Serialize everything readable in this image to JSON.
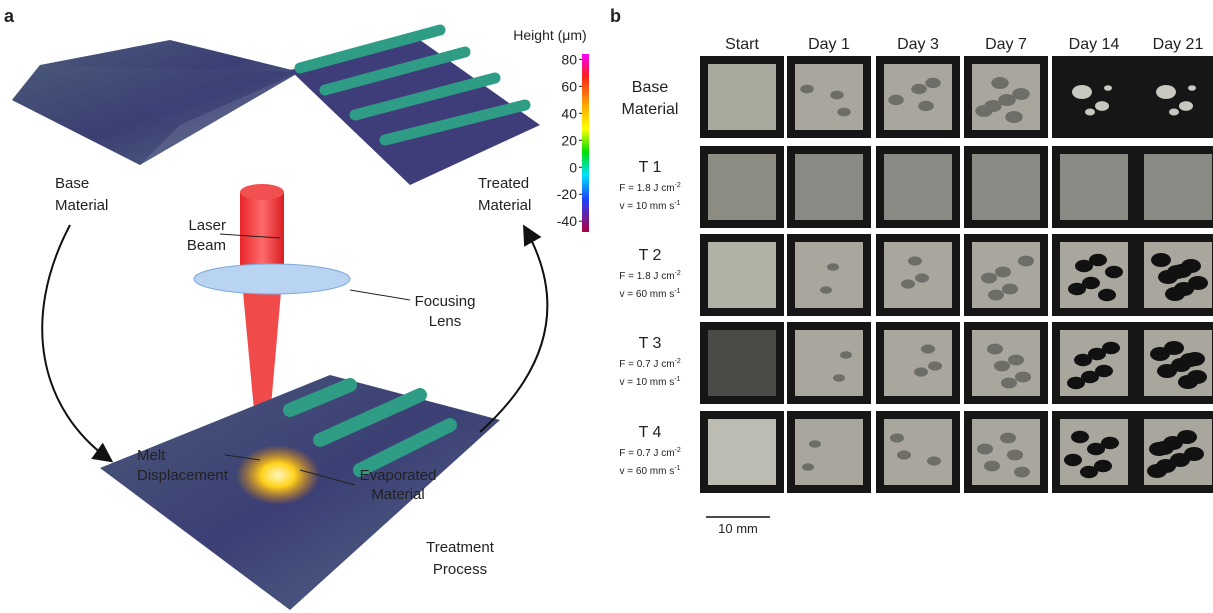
{
  "panel_a": {
    "label": "a",
    "base_material": [
      "Base",
      "Material"
    ],
    "treated_material": [
      "Treated",
      "Material"
    ],
    "laser_beam": [
      "Laser",
      "Beam"
    ],
    "focusing_lens": [
      "Focusing",
      "Lens"
    ],
    "melt_displacement": [
      "Melt",
      "Displacement"
    ],
    "evaporated_material": [
      "Evaporated",
      "Material"
    ],
    "treatment_process": [
      "Treatment",
      "Process"
    ],
    "colorbar": {
      "title": "Height (μm)",
      "ticks": [
        80,
        60,
        40,
        20,
        0,
        -20,
        -40
      ],
      "lim": [
        -48,
        84
      ]
    }
  },
  "panel_b": {
    "label": "b",
    "columns": [
      "Start",
      "Day 1",
      "Day 3",
      "Day 7",
      "Day 14",
      "Day 21"
    ],
    "rows": [
      {
        "name": [
          "Base",
          "Material"
        ]
      },
      {
        "name": [
          "T 1"
        ],
        "fluence": "F = 1.8 J cm",
        "fluence_exp": "-2",
        "speed": "v = 10 mm s",
        "speed_exp": "-1"
      },
      {
        "name": [
          "T 2"
        ],
        "fluence": "F = 1.8 J cm",
        "fluence_exp": "-2",
        "speed": "v = 60 mm s",
        "speed_exp": "-1"
      },
      {
        "name": [
          "T 3"
        ],
        "fluence": "F = 0.7 J cm",
        "fluence_exp": "-2",
        "speed": "v = 10 mm s",
        "speed_exp": "-1"
      },
      {
        "name": [
          "T 4"
        ],
        "fluence": "F = 0.7 J cm",
        "fluence_exp": "-2",
        "speed": "v = 60 mm s",
        "speed_exp": "-1"
      }
    ],
    "scale_bar": "10 mm"
  }
}
